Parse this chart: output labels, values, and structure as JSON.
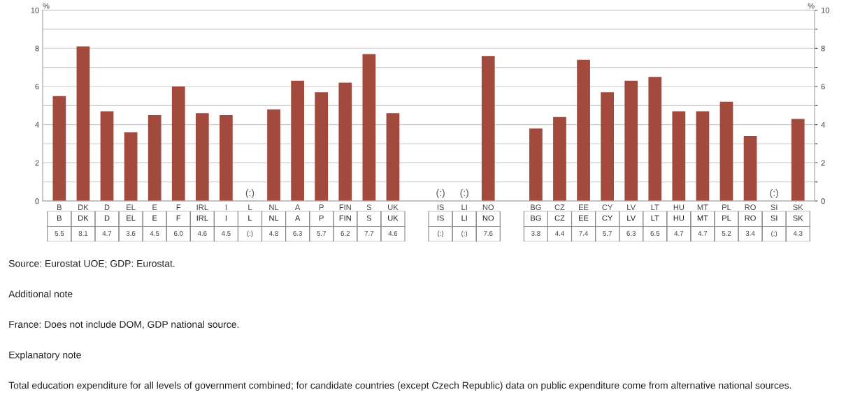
{
  "chart_data": {
    "type": "bar",
    "categories": [
      "B",
      "DK",
      "D",
      "EL",
      "E",
      "F",
      "IRL",
      "I",
      "L",
      "NL",
      "A",
      "P",
      "FIN",
      "S",
      "UK",
      null,
      "IS",
      "LI",
      "NO",
      null,
      "BG",
      "CZ",
      "EE",
      "CY",
      "LV",
      "LT",
      "HU",
      "MT",
      "PL",
      "RO",
      "SI",
      "SK"
    ],
    "values": [
      5.5,
      8.1,
      4.7,
      3.6,
      4.5,
      6.0,
      4.6,
      4.5,
      null,
      4.8,
      6.3,
      5.7,
      6.2,
      7.7,
      4.6,
      null,
      null,
      null,
      7.6,
      null,
      3.8,
      4.4,
      7.4,
      5.7,
      6.3,
      6.5,
      4.7,
      4.7,
      5.2,
      3.4,
      null,
      4.3
    ],
    "value_labels": [
      "5.5",
      "8.1",
      "4.7",
      "3.6",
      "4.5",
      "6.0",
      "4.6",
      "4.5",
      "(:)",
      "4.8",
      "6.3",
      "5.7",
      "6.2",
      "7.7",
      "4.6",
      null,
      "(:)",
      "(:)",
      "7.6",
      null,
      "3.8",
      "4.4",
      "7.4",
      "5.7",
      "6.3",
      "6.5",
      "4.7",
      "4.7",
      "5.2",
      "3.4",
      "(:)",
      "4.3"
    ],
    "color": "#a34a3e",
    "ylabel": "%",
    "y2label": "%",
    "ylim": [
      0,
      10
    ],
    "yticks": [
      0,
      {
        "value": 1,
        "label": null
      },
      2,
      {
        "value": 3,
        "label": null
      },
      4,
      {
        "value": 5,
        "label": null
      },
      6,
      {
        "value": 7,
        "label": null
      },
      8,
      {
        "value": 9,
        "label": null
      },
      10
    ],
    "y2lim": [
      0,
      10
    ],
    "y2ticks": [
      0,
      {
        "value": 1,
        "label": null
      },
      2,
      {
        "value": 3,
        "label": null
      },
      4,
      {
        "value": 5,
        "label": null
      },
      6,
      {
        "value": 7,
        "label": null
      },
      8,
      {
        "value": 9,
        "label": null
      },
      10
    ],
    "grid": "y",
    "annotations": [
      "Source: Eurostat UOE; GDP: Eurostat.",
      "Additional note",
      "France: Does not include DOM, GDP national source.",
      "Explanatory note",
      "Total education expenditure for all levels of government combined; for candidate countries (except Czech Republic) data on public expenditure come from alternative national sources."
    ]
  }
}
